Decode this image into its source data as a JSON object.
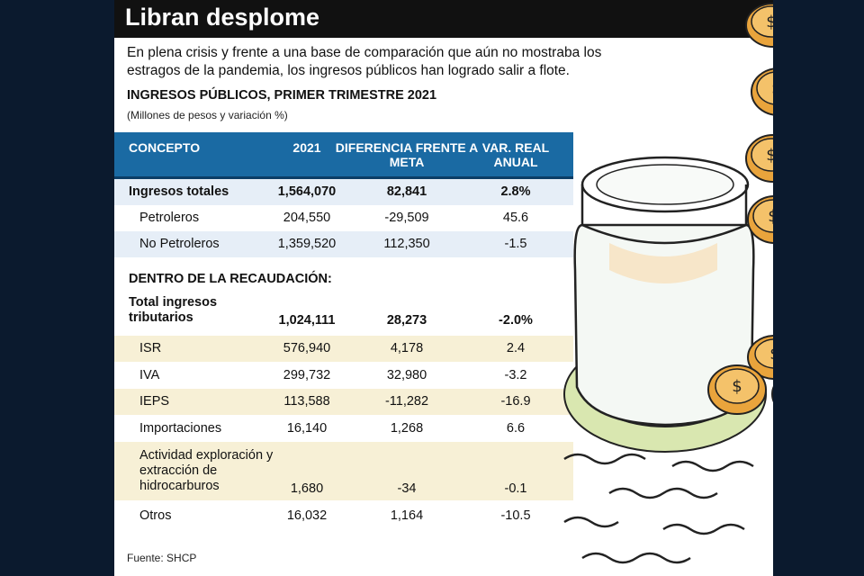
{
  "title": "Libran desplome",
  "intro": "En plena crisis y frente a una base de comparación que aún no mostraba los estragos de la pandemia, los ingresos públicos han logrado salir a flote.",
  "table_title": "INGRESOS PÚBLICOS, PRIMER TRIMESTRE 2021",
  "table_subtitle": "(Millones de pesos y variación %)",
  "headers": {
    "concepto": "CONCEPTO",
    "year": "2021",
    "diferencia": "DIFERENCIA FRENTE A META",
    "var": "VAR. REAL ANUAL"
  },
  "rows": [
    {
      "concepto": "Ingresos totales",
      "valor": "1,564,070",
      "diferencia": "82,841",
      "var": "2.8%"
    },
    {
      "concepto": "Petroleros",
      "valor": "204,550",
      "diferencia": "-29,509",
      "var": "45.6"
    },
    {
      "concepto": "No Petroleros",
      "valor": "1,359,520",
      "diferencia": "112,350",
      "var": "-1.5"
    }
  ],
  "section_title": "DENTRO DE LA RECAUDACIÓN:",
  "rows2": [
    {
      "concepto": "Total ingresos tributarios",
      "valor": "1,024,111",
      "diferencia": "28,273",
      "var": "-2.0%"
    },
    {
      "concepto": "ISR",
      "valor": "576,940",
      "diferencia": "4,178",
      "var": "2.4"
    },
    {
      "concepto": "IVA",
      "valor": "299,732",
      "diferencia": "32,980",
      "var": "-3.2"
    },
    {
      "concepto": "IEPS",
      "valor": "113,588",
      "diferencia": "-11,282",
      "var": "-16.9"
    },
    {
      "concepto": "Importaciones",
      "valor": "16,140",
      "diferencia": "1,268",
      "var": "6.6"
    },
    {
      "concepto": "Actividad exploración y extracción de hidrocarburos",
      "valor": "1,680",
      "diferencia": "-34",
      "var": "-0.1"
    },
    {
      "concepto": "Otros",
      "valor": "16,032",
      "diferencia": "1,164",
      "var": "-10.5"
    }
  ],
  "source": "Fuente: SHCP",
  "colors": {
    "header_blue": "#1a6aa3",
    "row_blue": "#e6eef7",
    "row_cream": "#f7f0d6",
    "coin_gold": "#e9a43c"
  }
}
